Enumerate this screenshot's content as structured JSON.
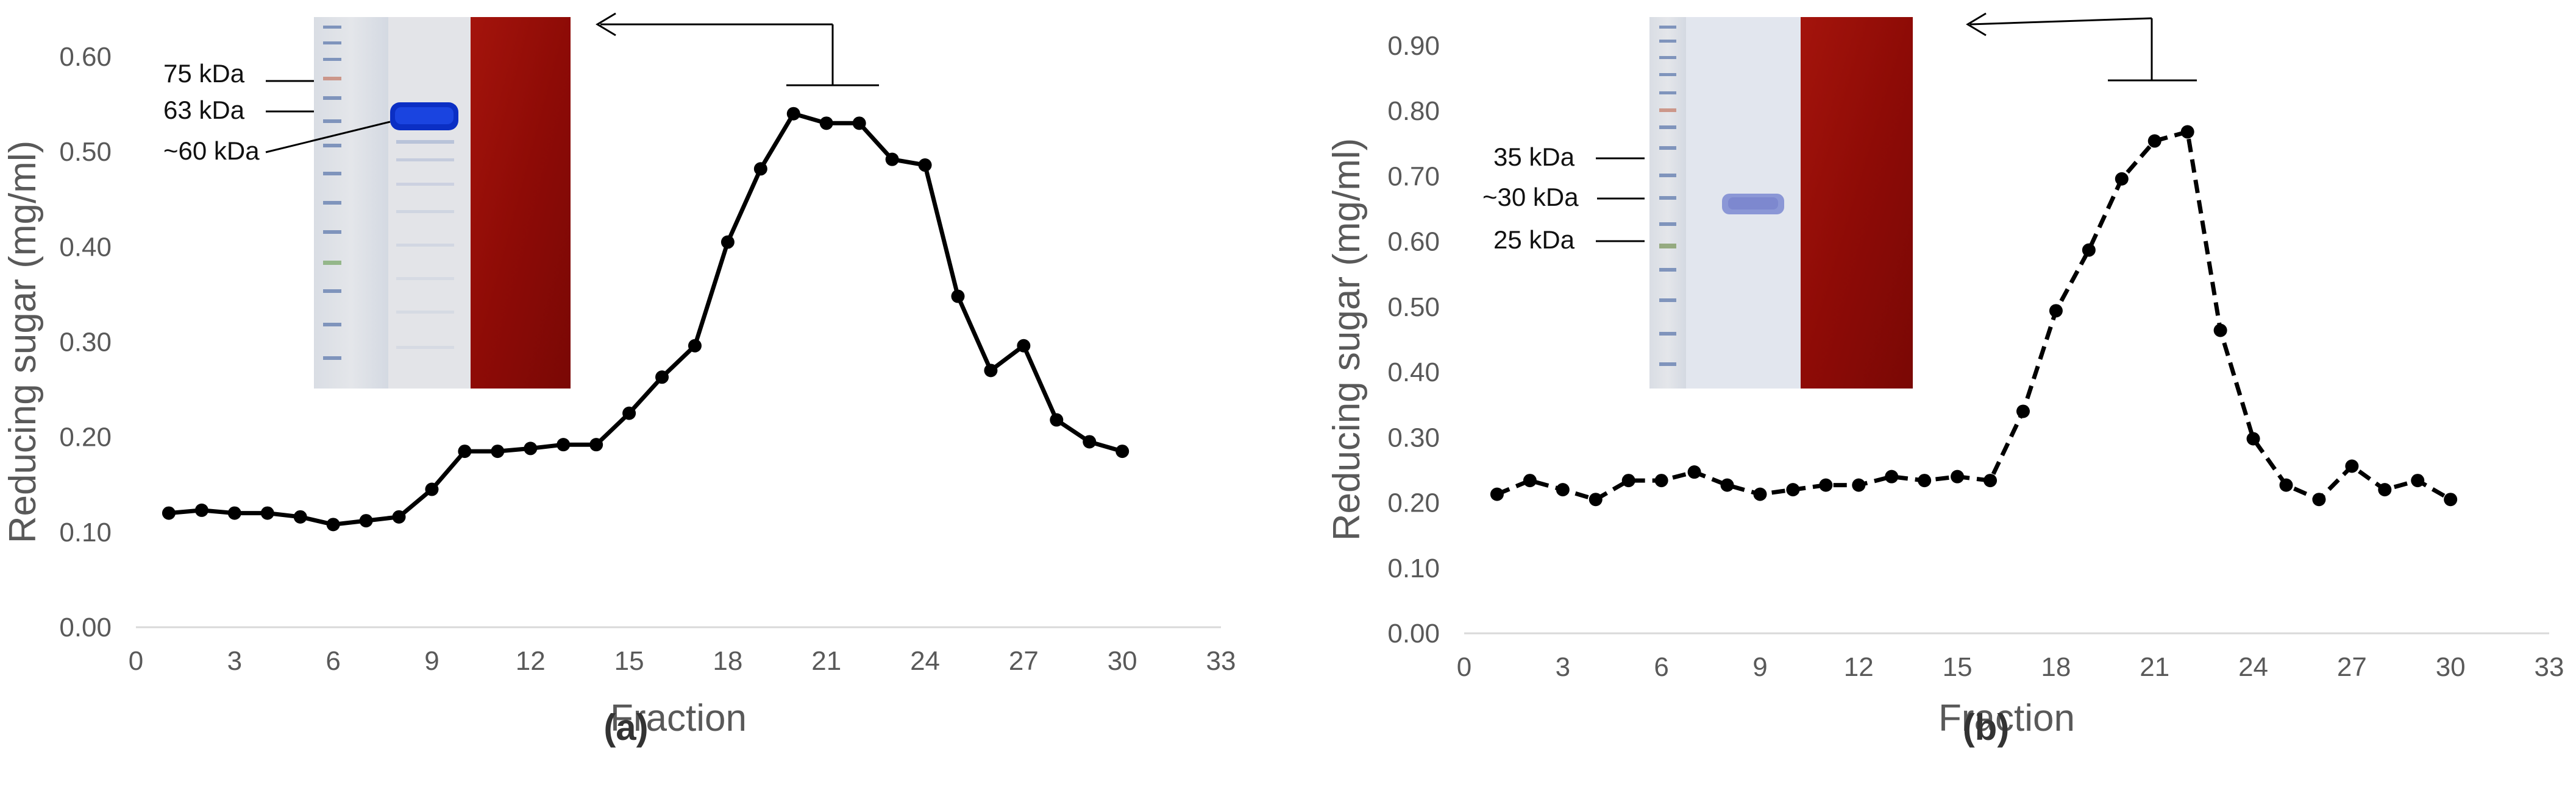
{
  "figure": {
    "panels": [
      {
        "label": "(a)"
      },
      {
        "label": "(b)"
      }
    ],
    "gel_a_markers": [
      "75 kDa",
      "63 kDa",
      "~60 kDa"
    ],
    "gel_b_markers": [
      "35 kDa",
      "~30 kDa",
      "25 kDa"
    ]
  },
  "chart_data": [
    {
      "type": "line",
      "panel": "(a)",
      "line_style": "solid",
      "marker": "circle",
      "color": "#000000",
      "xlabel": "Fraction",
      "ylabel": "Reducing sugar (mg/ml)",
      "xlim": [
        0,
        33
      ],
      "ylim": [
        0,
        0.6
      ],
      "xticks": [
        "0",
        "3",
        "6",
        "9",
        "12",
        "15",
        "18",
        "21",
        "24",
        "27",
        "30",
        "33"
      ],
      "yticks": [
        "0.00",
        "0.10",
        "0.20",
        "0.30",
        "0.40",
        "0.50",
        "0.60"
      ],
      "grid": false,
      "series": [
        {
          "x": [
            1,
            2,
            3,
            4,
            5,
            6,
            7,
            8,
            9,
            10,
            11,
            12,
            13,
            14,
            15,
            16,
            17,
            18,
            19,
            20,
            21,
            22,
            23,
            24,
            25,
            26,
            27,
            28,
            29,
            30
          ],
          "y": [
            0.12,
            0.123,
            0.12,
            0.12,
            0.116,
            0.108,
            0.112,
            0.116,
            0.145,
            0.185,
            0.185,
            0.188,
            0.192,
            0.192,
            0.225,
            0.263,
            0.296,
            0.405,
            0.482,
            0.54,
            0.53,
            0.53,
            0.492,
            0.486,
            0.348,
            0.27,
            0.296,
            0.218,
            0.195,
            0.185
          ]
        }
      ]
    },
    {
      "type": "line",
      "panel": "(b)",
      "line_style": "dashed",
      "marker": "circle",
      "color": "#000000",
      "xlabel": "Fraction",
      "ylabel": "Reducing sugar (mg/ml)",
      "xlim": [
        0,
        33
      ],
      "ylim": [
        0,
        0.9
      ],
      "xticks": [
        "0",
        "3",
        "6",
        "9",
        "12",
        "15",
        "18",
        "21",
        "24",
        "27",
        "30",
        "33"
      ],
      "yticks": [
        "0.00",
        "0.10",
        "0.20",
        "0.30",
        "0.40",
        "0.50",
        "0.60",
        "0.70",
        "0.80",
        "0.90"
      ],
      "grid": false,
      "series": [
        {
          "x": [
            1,
            2,
            3,
            4,
            5,
            6,
            7,
            8,
            9,
            10,
            11,
            12,
            13,
            14,
            15,
            16,
            17,
            18,
            19,
            20,
            21,
            22,
            23,
            24,
            25,
            26,
            27,
            28,
            29,
            30
          ],
          "y": [
            0.213,
            0.234,
            0.22,
            0.205,
            0.234,
            0.234,
            0.247,
            0.227,
            0.213,
            0.22,
            0.227,
            0.227,
            0.24,
            0.234,
            0.24,
            0.234,
            0.34,
            0.494,
            0.587,
            0.696,
            0.754,
            0.768,
            0.464,
            0.298,
            0.227,
            0.205,
            0.256,
            0.22,
            0.234,
            0.205
          ]
        }
      ]
    }
  ]
}
